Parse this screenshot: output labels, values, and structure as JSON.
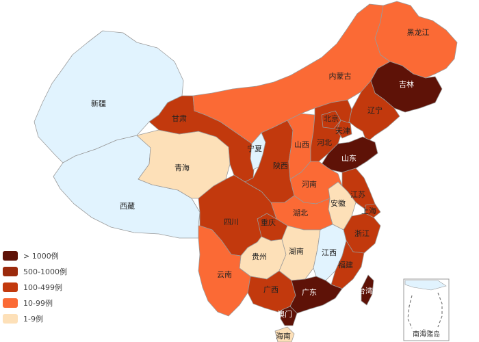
{
  "colors": {
    "l1": "#fde0b8",
    "l2": "#fb6a35",
    "l3": "#c2390d",
    "l4": "#9b2a0c",
    "l5": "#5e1207",
    "none": "#e1f3fe"
  },
  "legend": [
    {
      "label": "> 1000例",
      "level": "l5"
    },
    {
      "label": "500-1000例",
      "level": "l4"
    },
    {
      "label": "100-499例",
      "level": "l3"
    },
    {
      "label": "10-99例",
      "level": "l2"
    },
    {
      "label": "1-9例",
      "level": "l1"
    }
  ],
  "provinces": [
    {
      "id": "xinjiang",
      "label": "新疆",
      "level": "none"
    },
    {
      "id": "xizang",
      "label": "西藏",
      "level": "none"
    },
    {
      "id": "qinghai",
      "label": "青海",
      "level": "l1"
    },
    {
      "id": "gansu",
      "label": "甘肃",
      "level": "l3"
    },
    {
      "id": "neimenggu",
      "label": "内蒙古",
      "level": "l2"
    },
    {
      "id": "heilongjiang",
      "label": "黑龙江",
      "level": "l2"
    },
    {
      "id": "jilin",
      "label": "吉林",
      "level": "l5"
    },
    {
      "id": "liaoning",
      "label": "辽宁",
      "level": "l3"
    },
    {
      "id": "beijing",
      "label": "北京",
      "level": "l3"
    },
    {
      "id": "tianjin",
      "label": "天津",
      "level": "l3"
    },
    {
      "id": "hebei",
      "label": "河北",
      "level": "l3"
    },
    {
      "id": "shanxi",
      "label": "山西",
      "level": "l2"
    },
    {
      "id": "ningxia",
      "label": "宁夏",
      "level": "none"
    },
    {
      "id": "shaanxi",
      "label": "陕西",
      "level": "l3"
    },
    {
      "id": "shandong",
      "label": "山东",
      "level": "l5"
    },
    {
      "id": "henan",
      "label": "河南",
      "level": "l2"
    },
    {
      "id": "jiangsu",
      "label": "江苏",
      "level": "l3"
    },
    {
      "id": "anhui",
      "label": "安徽",
      "level": "l1"
    },
    {
      "id": "shanghai",
      "label": "上海",
      "level": "l3"
    },
    {
      "id": "hubei",
      "label": "湖北",
      "level": "l2"
    },
    {
      "id": "sichuan",
      "label": "四川",
      "level": "l3"
    },
    {
      "id": "chongqing",
      "label": "重庆",
      "level": "l3"
    },
    {
      "id": "zhejiang",
      "label": "浙江",
      "level": "l3"
    },
    {
      "id": "hunan",
      "label": "湖南",
      "level": "l1"
    },
    {
      "id": "jiangxi",
      "label": "江西",
      "level": "none"
    },
    {
      "id": "guizhou",
      "label": "贵州",
      "level": "l1"
    },
    {
      "id": "yunnan",
      "label": "云南",
      "level": "l2"
    },
    {
      "id": "guangxi",
      "label": "广西",
      "level": "l3"
    },
    {
      "id": "guangdong",
      "label": "广东",
      "level": "l5"
    },
    {
      "id": "fujian",
      "label": "福建",
      "level": "l3"
    },
    {
      "id": "taiwan",
      "label": "台湾",
      "level": "l5"
    },
    {
      "id": "hainan",
      "label": "海南",
      "level": "l1"
    },
    {
      "id": "macau",
      "label": "澳门",
      "level": "l5"
    }
  ],
  "inset": {
    "label": "南海诸岛"
  }
}
